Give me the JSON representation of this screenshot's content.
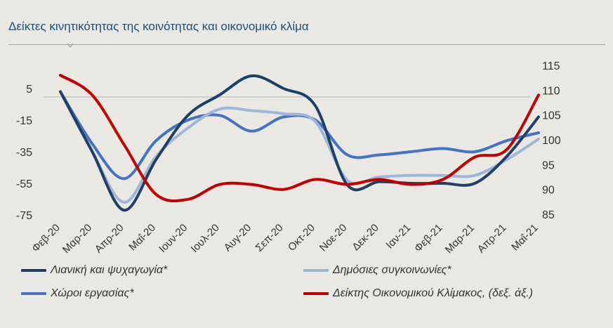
{
  "title": "Δείκτες κινητικότητας της κοινότητας και οικονομικό κλίμα",
  "chart_data": {
    "type": "line",
    "title": "Δείκτες κινητικότητας της κοινότητας και οικονομικό κλίμα",
    "categories": [
      "Φεβ-20",
      "Μαρ-20",
      "Απρ-20",
      "Μαΐ-20",
      "Ιουν-20",
      "Ιουλ-20",
      "Αυγ-20",
      "Σεπ-20",
      "Οκτ-20",
      "Νοε-20",
      "Δεκ-20",
      "Ιαν-21",
      "Φεβ-21",
      "Μαρ-21",
      "Απρ-21",
      "Μαΐ-21"
    ],
    "y_left": {
      "ticks": [
        5,
        -15,
        -35,
        -55,
        -75
      ],
      "range": [
        -75,
        5
      ]
    },
    "y_right": {
      "ticks": [
        115,
        110,
        105,
        100,
        95,
        90,
        85
      ],
      "range": [
        85,
        115
      ]
    },
    "legend_position": "bottom",
    "series": [
      {
        "name": "Λιανική και ψυχαγωγία*",
        "axis": "left",
        "color": "#1f3f66",
        "values": [
          3,
          -35,
          -72,
          -40,
          -12,
          1,
          13,
          5,
          -6,
          -56,
          -54,
          -55,
          -55,
          -55,
          -38,
          -13
        ]
      },
      {
        "name": "Δημόσιες συγκοινωνίες*",
        "axis": "left",
        "color": "#9fb6d9",
        "values": [
          3,
          -35,
          -67,
          -38,
          -20,
          -8,
          -9,
          -11,
          -16,
          -53,
          -51,
          -50,
          -50,
          -50,
          -40,
          -27
        ]
      },
      {
        "name": "Χώροι εργασίας*",
        "axis": "left",
        "color": "#4472c4",
        "values": [
          3,
          -30,
          -52,
          -28,
          -15,
          -12,
          -22,
          -13,
          -15,
          -37,
          -37,
          -35,
          -33,
          -35,
          -28,
          -23
        ]
      },
      {
        "name": "Δείκτης Οικονομικού  Κλίμακος, (δεξ. άξ.)",
        "axis": "right",
        "color": "#c00000",
        "values": [
          113,
          109,
          99,
          89,
          88,
          91,
          91,
          90,
          92,
          91,
          92,
          91,
          92,
          96.5,
          98,
          109
        ]
      }
    ]
  }
}
